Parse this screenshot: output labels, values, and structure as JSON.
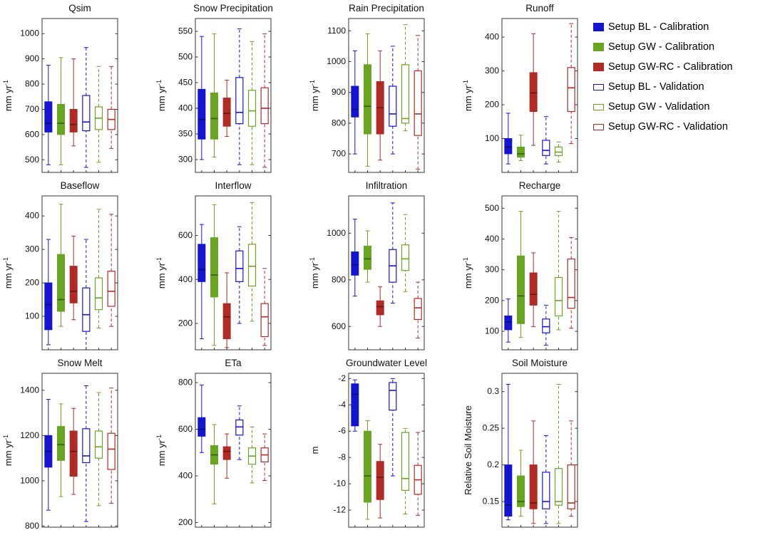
{
  "figure": {
    "background": "#ffffff"
  },
  "chart_data": {
    "type": "boxplot-grid",
    "grid": {
      "rows": 3,
      "cols": 4
    },
    "legend_position": "top-right",
    "series": [
      {
        "name": "Setup BL - Calibration",
        "color": "#1515CE",
        "filled": true,
        "dashed": false
      },
      {
        "name": "Setup GW - Calibration",
        "color": "#69A423",
        "filled": true,
        "dashed": false
      },
      {
        "name": "Setup GW-RC - Calibration",
        "color": "#B02B25",
        "filled": true,
        "dashed": false
      },
      {
        "name": "Setup BL - Validation",
        "color": "#1515CE",
        "filled": false,
        "dashed": true
      },
      {
        "name": "Setup GW - Validation",
        "color": "#69A423",
        "filled": false,
        "dashed": true
      },
      {
        "name": "Setup GW-RC - Validation",
        "color": "#B02B25",
        "filled": false,
        "dashed": true
      }
    ],
    "box_stats_order": [
      "whisker_low",
      "q1",
      "median",
      "q3",
      "whisker_high"
    ],
    "plots": [
      {
        "title": "Qsim",
        "ylabel": "mm yr-1",
        "ylim": [
          450,
          1060
        ],
        "yticks": [
          500,
          600,
          700,
          800,
          900,
          1000
        ],
        "ytick_labels": [
          "500",
          "600",
          "700",
          "800",
          "900",
          "1000"
        ],
        "boxes": [
          [
            480,
            610,
            645,
            730,
            875
          ],
          [
            480,
            600,
            645,
            720,
            905
          ],
          [
            555,
            610,
            640,
            700,
            900
          ],
          [
            470,
            615,
            650,
            755,
            945
          ],
          [
            490,
            620,
            665,
            710,
            870
          ],
          [
            545,
            620,
            660,
            700,
            870
          ]
        ]
      },
      {
        "title": "Snow Precipitation",
        "ylabel": "mm yr-1",
        "ylim": [
          275,
          575
        ],
        "yticks": [
          300,
          350,
          400,
          450,
          500,
          550
        ],
        "ytick_labels": [
          "300",
          "350",
          "400",
          "450",
          "500",
          "550"
        ],
        "boxes": [
          [
            300,
            340,
            378,
            437,
            540
          ],
          [
            305,
            340,
            380,
            430,
            545
          ],
          [
            345,
            365,
            390,
            420,
            455
          ],
          [
            290,
            370,
            392,
            460,
            555
          ],
          [
            290,
            365,
            395,
            435,
            530
          ],
          [
            285,
            370,
            400,
            440,
            545
          ]
        ]
      },
      {
        "title": "Rain Precipitation",
        "ylabel": "mm yr-1",
        "ylim": [
          640,
          1140
        ],
        "yticks": [
          700,
          800,
          900,
          1000,
          1100
        ],
        "ytick_labels": [
          "700",
          "800",
          "900",
          "1000",
          "1100"
        ],
        "boxes": [
          [
            700,
            820,
            845,
            920,
            1035
          ],
          [
            660,
            765,
            855,
            990,
            1090
          ],
          [
            680,
            765,
            850,
            935,
            1035
          ],
          [
            700,
            790,
            830,
            920,
            1050
          ],
          [
            775,
            800,
            815,
            990,
            1120
          ],
          [
            650,
            760,
            830,
            970,
            1085
          ]
        ]
      },
      {
        "title": "Runoff",
        "ylabel": "mm yr-1",
        "ylim": [
          0,
          455
        ],
        "yticks": [
          100,
          200,
          300,
          400
        ],
        "ytick_labels": [
          "100",
          "200",
          "300",
          "400"
        ],
        "boxes": [
          [
            25,
            55,
            75,
            100,
            175
          ],
          [
            35,
            45,
            55,
            75,
            110
          ],
          [
            80,
            180,
            235,
            295,
            410
          ],
          [
            25,
            50,
            65,
            95,
            165
          ],
          [
            30,
            50,
            60,
            75,
            90
          ],
          [
            85,
            180,
            250,
            310,
            440
          ]
        ]
      },
      {
        "title": "Baseflow",
        "ylabel": "mm yr-1",
        "ylim": [
          0,
          460
        ],
        "yticks": [
          100,
          200,
          300,
          400
        ],
        "ytick_labels": [
          "100",
          "200",
          "300",
          "400"
        ],
        "boxes": [
          [
            15,
            60,
            135,
            200,
            330
          ],
          [
            70,
            115,
            150,
            285,
            435
          ],
          [
            90,
            140,
            175,
            250,
            340
          ],
          [
            0,
            55,
            105,
            185,
            330
          ],
          [
            65,
            120,
            155,
            215,
            420
          ],
          [
            70,
            130,
            175,
            235,
            405
          ]
        ]
      },
      {
        "title": "Interflow",
        "ylabel": "mm yr-1",
        "ylim": [
          80,
          780
        ],
        "yticks": [
          200,
          400,
          600
        ],
        "ytick_labels": [
          "200",
          "400",
          "600"
        ],
        "boxes": [
          [
            130,
            390,
            445,
            560,
            650
          ],
          [
            100,
            320,
            420,
            590,
            740
          ],
          [
            90,
            130,
            230,
            290,
            430
          ],
          [
            200,
            390,
            450,
            530,
            640
          ],
          [
            210,
            370,
            460,
            560,
            750
          ],
          [
            100,
            140,
            230,
            290,
            450
          ]
        ]
      },
      {
        "title": "Infiltration",
        "ylabel": "mm yr-1",
        "ylim": [
          500,
          1160
        ],
        "yticks": [
          600,
          800,
          1000
        ],
        "ytick_labels": [
          "600",
          "800",
          "1000"
        ],
        "boxes": [
          [
            730,
            820,
            865,
            920,
            1060
          ],
          [
            790,
            845,
            890,
            945,
            1010
          ],
          [
            600,
            650,
            685,
            710,
            770
          ],
          [
            700,
            790,
            860,
            930,
            1130
          ],
          [
            750,
            840,
            890,
            950,
            1080
          ],
          [
            550,
            630,
            680,
            720,
            790
          ]
        ]
      },
      {
        "title": "Recharge",
        "ylabel": "mm yr-1",
        "ylim": [
          40,
          540
        ],
        "yticks": [
          100,
          200,
          300,
          400,
          500
        ],
        "ytick_labels": [
          "100",
          "200",
          "300",
          "400",
          "500"
        ],
        "boxes": [
          [
            65,
            105,
            130,
            150,
            205
          ],
          [
            80,
            125,
            215,
            345,
            490
          ],
          [
            115,
            185,
            220,
            290,
            355
          ],
          [
            55,
            95,
            115,
            140,
            185
          ],
          [
            105,
            150,
            200,
            275,
            490
          ],
          [
            110,
            175,
            210,
            335,
            405
          ]
        ]
      },
      {
        "title": "Snow Melt",
        "ylabel": "mm yr-1",
        "ylim": [
          795,
          1475
        ],
        "yticks": [
          800,
          1000,
          1200,
          1400
        ],
        "ytick_labels": [
          "800",
          "1000",
          "1200",
          "1400"
        ],
        "boxes": [
          [
            870,
            1060,
            1130,
            1200,
            1360
          ],
          [
            930,
            1090,
            1160,
            1240,
            1340
          ],
          [
            940,
            1020,
            1130,
            1220,
            1320
          ],
          [
            820,
            1080,
            1110,
            1230,
            1420
          ],
          [
            890,
            1100,
            1150,
            1220,
            1390
          ],
          [
            900,
            1050,
            1140,
            1210,
            1410
          ]
        ]
      },
      {
        "title": "ETa",
        "ylabel": "mm yr-1",
        "ylim": [
          180,
          840
        ],
        "yticks": [
          200,
          400,
          600,
          800
        ],
        "ytick_labels": [
          "200",
          "400",
          "600",
          "800"
        ],
        "boxes": [
          [
            500,
            570,
            600,
            650,
            790
          ],
          [
            280,
            450,
            490,
            530,
            620
          ],
          [
            390,
            470,
            505,
            525,
            580
          ],
          [
            470,
            575,
            610,
            640,
            700
          ],
          [
            370,
            450,
            485,
            520,
            610
          ],
          [
            380,
            460,
            490,
            520,
            580
          ]
        ]
      },
      {
        "title": "Groundwater Level",
        "ylabel": "m",
        "ylim": [
          -13.3,
          -1.6
        ],
        "yticks": [
          -2,
          -4,
          -6,
          -8,
          -10,
          -12
        ],
        "ytick_labels": [
          "-2",
          "-4",
          "-6",
          "-8",
          "-10",
          "-12"
        ],
        "boxes": [
          [
            -6.0,
            -5.6,
            -3.2,
            -2.4,
            -2.1
          ],
          [
            -12.7,
            -11.4,
            -9.4,
            -6.0,
            -5.2
          ],
          [
            -12.6,
            -11.2,
            -9.5,
            -8.3,
            -7.0
          ],
          [
            -9.4,
            -4.4,
            -2.9,
            -2.3,
            -2.0
          ],
          [
            -12.3,
            -10.5,
            -9.6,
            -6.1,
            -5.8
          ],
          [
            -12.4,
            -10.8,
            -9.7,
            -8.6,
            -6.1
          ]
        ]
      },
      {
        "title": "Soil Moisture",
        "ylabel": "Relative Soil Moisture",
        "ylim": [
          0.115,
          0.325
        ],
        "yticks": [
          0.15,
          0.2,
          0.25,
          0.3
        ],
        "ytick_labels": [
          "0.15",
          "0.2",
          "0.25",
          "0.3"
        ],
        "boxes": [
          [
            0.125,
            0.13,
            0.145,
            0.2,
            0.31
          ],
          [
            0.13,
            0.143,
            0.15,
            0.185,
            0.22
          ],
          [
            0.12,
            0.14,
            0.148,
            0.2,
            0.26
          ],
          [
            0.12,
            0.14,
            0.15,
            0.19,
            0.24
          ],
          [
            0.12,
            0.145,
            0.15,
            0.195,
            0.31
          ],
          [
            0.13,
            0.14,
            0.148,
            0.2,
            0.26
          ]
        ]
      }
    ]
  }
}
